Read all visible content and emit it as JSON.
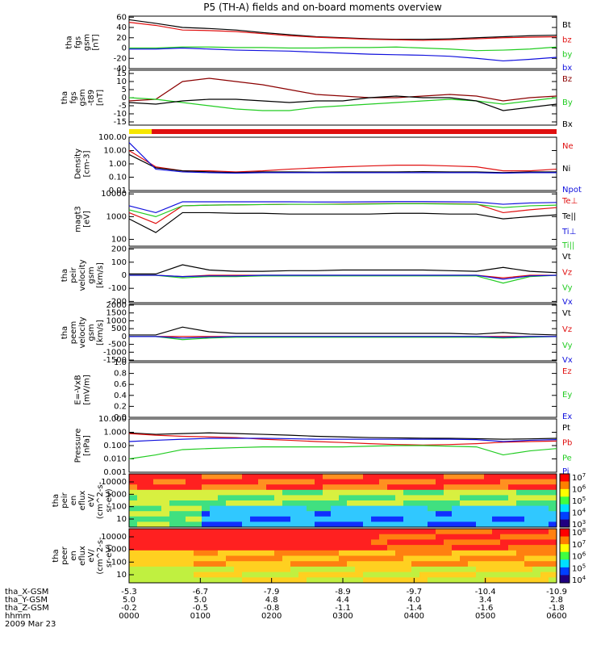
{
  "title": "P5 (TH-A) fields and on-board moments overview",
  "date_label": "2009 Mar 23",
  "colors": {
    "black": "#000000",
    "red": "#e01010",
    "green": "#22cc22",
    "blue": "#1010dd",
    "darkred": "#8b0000"
  },
  "chart_data": [
    {
      "id": "bfield",
      "type": "line",
      "ylabel": [
        "tha",
        "fgs",
        "gsm",
        "[nT]"
      ],
      "ylim": [
        -40,
        62
      ],
      "ticks": [
        60,
        40,
        20,
        0,
        -20,
        -40
      ],
      "series": [
        {
          "name": "Bt",
          "color": "#000000",
          "values": [
            55,
            48,
            40,
            38,
            35,
            30,
            26,
            22,
            20,
            18,
            17,
            17,
            18,
            20,
            22,
            24,
            25
          ]
        },
        {
          "name": "bz",
          "color": "#e01010",
          "values": [
            50,
            44,
            35,
            34,
            32,
            28,
            24,
            21,
            19,
            17,
            16,
            15,
            16,
            18,
            20,
            21,
            22
          ]
        },
        {
          "name": "by",
          "color": "#22cc22",
          "values": [
            0,
            0,
            2,
            2,
            1,
            1,
            0,
            0,
            1,
            1,
            2,
            0,
            -2,
            -5,
            -4,
            -2,
            2
          ]
        },
        {
          "name": "bx",
          "color": "#1010dd",
          "values": [
            -2,
            -2,
            0,
            -2,
            -4,
            -5,
            -6,
            -8,
            -10,
            -12,
            -13,
            -14,
            -16,
            -20,
            -25,
            -22,
            -18
          ]
        }
      ]
    },
    {
      "id": "bfield_zoom",
      "type": "line",
      "ylabel": [
        "tha",
        "fgs",
        "gsm",
        "-t89",
        "[nT]"
      ],
      "ylim": [
        -17,
        17
      ],
      "ticks": [
        15,
        10,
        5,
        0,
        -5,
        -10,
        -15
      ],
      "series": [
        {
          "name": "Bz",
          "color": "#8b0000",
          "values": [
            -2,
            -1,
            10,
            12,
            10,
            8,
            5,
            2,
            1,
            0,
            0,
            1,
            2,
            1,
            -2,
            0,
            1
          ]
        },
        {
          "name": "By",
          "color": "#22cc22",
          "values": [
            0,
            -1,
            -3,
            -5,
            -7,
            -8,
            -8,
            -6,
            -5,
            -4,
            -3,
            -2,
            -1,
            -2,
            -4,
            -2,
            0
          ]
        },
        {
          "name": "Bx",
          "color": "#000000",
          "values": [
            -3,
            -4,
            -2,
            -1,
            -1,
            -2,
            -3,
            -2,
            -2,
            0,
            1,
            0,
            0,
            -2,
            -8,
            -6,
            -4
          ]
        }
      ]
    },
    {
      "id": "density",
      "type": "line",
      "log": true,
      "ylabel": [
        "Density",
        "[cm-3]"
      ],
      "ylim": [
        0.01,
        100
      ],
      "ticks": [
        "100.00",
        "10.00",
        "1.00",
        "0.10",
        "0.01"
      ],
      "series": [
        {
          "name": "Ne",
          "color": "#e01010",
          "values": [
            10,
            0.6,
            0.3,
            0.3,
            0.25,
            0.3,
            0.4,
            0.5,
            0.6,
            0.7,
            0.8,
            0.8,
            0.7,
            0.6,
            0.3,
            0.3,
            0.4
          ]
        },
        {
          "name": "Ni",
          "color": "#000000",
          "values": [
            5,
            0.5,
            0.3,
            0.25,
            0.22,
            0.25,
            0.25,
            0.24,
            0.25,
            0.25,
            0.25,
            0.26,
            0.25,
            0.25,
            0.22,
            0.25,
            0.25
          ]
        },
        {
          "name": "Npot",
          "color": "#1010dd",
          "values": [
            40,
            0.4,
            0.25,
            0.22,
            0.2,
            0.22,
            0.22,
            0.22,
            0.22,
            0.22,
            0.22,
            0.22,
            0.22,
            0.22,
            0.2,
            0.22,
            0.22
          ]
        }
      ]
    },
    {
      "id": "temperature",
      "type": "line",
      "log": true,
      "ylabel": [
        "magt3",
        "[eV]"
      ],
      "ylim": [
        50,
        12000
      ],
      "ticks": [
        "10000",
        "1000",
        "100"
      ],
      "series": [
        {
          "name": "Te⊥",
          "color": "#e01010",
          "values": [
            1500,
            500,
            3000,
            3200,
            3300,
            3400,
            3500,
            3500,
            3600,
            3700,
            3800,
            3800,
            3700,
            3600,
            1500,
            2000,
            2500
          ]
        },
        {
          "name": "Te||",
          "color": "#000000",
          "values": [
            800,
            200,
            1500,
            1500,
            1400,
            1400,
            1300,
            1300,
            1300,
            1300,
            1400,
            1400,
            1300,
            1300,
            800,
            1000,
            1200
          ]
        },
        {
          "name": "Ti⊥",
          "color": "#1010dd",
          "values": [
            3000,
            1500,
            4500,
            4500,
            4500,
            4500,
            4500,
            4400,
            4400,
            4500,
            4600,
            4600,
            4500,
            4400,
            3500,
            4000,
            4200
          ]
        },
        {
          "name": "Ti||",
          "color": "#22cc22",
          "values": [
            2000,
            1000,
            3000,
            3200,
            3300,
            3400,
            3500,
            3500,
            3500,
            3600,
            3700,
            3700,
            3600,
            3500,
            2500,
            3000,
            3200
          ]
        }
      ]
    },
    {
      "id": "peir_velocity",
      "type": "line",
      "ylabel": [
        "tha",
        "peir",
        "velocity",
        "gsm",
        "[km/s]"
      ],
      "ylim": [
        -210,
        210
      ],
      "ticks": [
        200,
        100,
        0,
        -100,
        -200
      ],
      "series": [
        {
          "name": "Vt",
          "color": "#000000",
          "values": [
            10,
            10,
            80,
            40,
            30,
            30,
            35,
            35,
            40,
            40,
            40,
            40,
            35,
            30,
            60,
            30,
            20
          ]
        },
        {
          "name": "Vz",
          "color": "#e01010",
          "values": [
            0,
            0,
            -10,
            0,
            0,
            0,
            0,
            0,
            0,
            0,
            0,
            0,
            0,
            0,
            -20,
            0,
            0
          ]
        },
        {
          "name": "Vy",
          "color": "#22cc22",
          "values": [
            0,
            0,
            -20,
            -10,
            -10,
            -5,
            -5,
            -5,
            -5,
            -5,
            -5,
            -5,
            -5,
            -5,
            -60,
            -10,
            0
          ]
        },
        {
          "name": "Vx",
          "color": "#1010dd",
          "values": [
            0,
            0,
            -10,
            -5,
            -5,
            0,
            0,
            0,
            0,
            0,
            0,
            0,
            0,
            0,
            -30,
            -5,
            0
          ]
        }
      ]
    },
    {
      "id": "peem_velocity",
      "type": "line",
      "ylabel": [
        "tha",
        "peem",
        "velocity",
        "gsm",
        "[km/s]"
      ],
      "ylim": [
        -1550,
        2050
      ],
      "ticks": [
        2000,
        1500,
        1000,
        500,
        0,
        -500,
        -1000,
        -1500
      ],
      "series": [
        {
          "name": "Vt",
          "color": "#000000",
          "values": [
            100,
            100,
            600,
            300,
            200,
            200,
            200,
            200,
            200,
            200,
            200,
            200,
            200,
            150,
            250,
            150,
            100
          ]
        },
        {
          "name": "Vz",
          "color": "#e01010",
          "values": [
            0,
            0,
            0,
            0,
            0,
            0,
            0,
            0,
            0,
            0,
            0,
            0,
            0,
            0,
            0,
            0,
            0
          ]
        },
        {
          "name": "Vy",
          "color": "#22cc22",
          "values": [
            0,
            0,
            -200,
            -100,
            -50,
            -50,
            -50,
            -50,
            -50,
            -50,
            -50,
            -50,
            -50,
            -50,
            -100,
            -50,
            0
          ]
        },
        {
          "name": "Vx",
          "color": "#1010dd",
          "values": [
            0,
            0,
            -100,
            -50,
            0,
            0,
            0,
            0,
            0,
            0,
            0,
            0,
            0,
            0,
            -50,
            0,
            0
          ]
        }
      ]
    },
    {
      "id": "efield",
      "type": "line",
      "ylabel": [
        "E=-VxB",
        "[mV/m]"
      ],
      "ylim": [
        0,
        1
      ],
      "ticks": [
        "1.0",
        "0.8",
        "0.6",
        "0.4",
        "0.2",
        "0.0"
      ],
      "series": [
        {
          "name": "Ez",
          "color": "#e01010",
          "values": []
        },
        {
          "name": "Ey",
          "color": "#22cc22",
          "values": []
        },
        {
          "name": "Ex",
          "color": "#1010dd",
          "values": []
        }
      ]
    },
    {
      "id": "pressure",
      "type": "line",
      "log": true,
      "ylabel": [
        "Pressure",
        "[nPa]"
      ],
      "ylim": [
        0.001,
        10
      ],
      "ticks": [
        "10.000",
        "1.000",
        "0.100",
        "0.010",
        "0.001"
      ],
      "series": [
        {
          "name": "Pt",
          "color": "#000000",
          "values": [
            0.9,
            0.7,
            0.8,
            0.9,
            0.8,
            0.7,
            0.6,
            0.5,
            0.45,
            0.4,
            0.38,
            0.36,
            0.35,
            0.33,
            0.3,
            0.32,
            0.35
          ]
        },
        {
          "name": "Pb",
          "color": "#e01010",
          "values": [
            0.8,
            0.6,
            0.5,
            0.45,
            0.4,
            0.3,
            0.25,
            0.2,
            0.17,
            0.14,
            0.12,
            0.11,
            0.12,
            0.14,
            0.18,
            0.2,
            0.22
          ]
        },
        {
          "name": "Pe",
          "color": "#22cc22",
          "values": [
            0.01,
            0.02,
            0.05,
            0.06,
            0.07,
            0.08,
            0.08,
            0.08,
            0.08,
            0.09,
            0.1,
            0.1,
            0.09,
            0.08,
            0.02,
            0.04,
            0.06
          ]
        },
        {
          "name": "Pi",
          "color": "#1010dd",
          "values": [
            0.2,
            0.25,
            0.3,
            0.35,
            0.35,
            0.35,
            0.33,
            0.3,
            0.3,
            0.3,
            0.3,
            0.3,
            0.3,
            0.28,
            0.2,
            0.25,
            0.28
          ]
        }
      ]
    },
    {
      "id": "peir_spectrogram",
      "type": "heatmap",
      "ylabel": [
        "tha",
        "peir",
        "en",
        "eflux",
        "eV/",
        "(cm^2-s-",
        "sr-eV)"
      ],
      "yticks": [
        "10000",
        "1000",
        "100",
        "10"
      ],
      "colorbar": [
        "10^7",
        "10^6",
        "10^5",
        "10^4",
        "10^3"
      ]
    },
    {
      "id": "peer_spectrogram",
      "type": "heatmap",
      "ylabel": [
        "tha",
        "peer",
        "en",
        "eflux",
        "eV/",
        "(cm^2-s-",
        "sr-eV)"
      ],
      "yticks": [
        "10000",
        "1000",
        "100",
        "10"
      ],
      "colorbar": [
        "10^8",
        "10^7",
        "10^6",
        "10^5",
        "10^4"
      ]
    }
  ],
  "xaxis": {
    "rows": [
      {
        "label": "tha_X-GSM",
        "values": [
          "-5.3",
          "-6.7",
          "-7.9",
          "-8.9",
          "-9.7",
          "-10.4",
          "-10.9"
        ]
      },
      {
        "label": "tha_Y-GSM",
        "values": [
          "5.0",
          "5.0",
          "4.8",
          "4.4",
          "4.0",
          "3.4",
          "2.8"
        ]
      },
      {
        "label": "tha_Z-GSM",
        "values": [
          "-0.2",
          "-0.5",
          "-0.8",
          "-1.1",
          "-1.4",
          "-1.6",
          "-1.8"
        ]
      },
      {
        "label": "hhmm",
        "values": [
          "0000",
          "0100",
          "0200",
          "0300",
          "0400",
          "0500",
          "0600"
        ]
      }
    ]
  }
}
